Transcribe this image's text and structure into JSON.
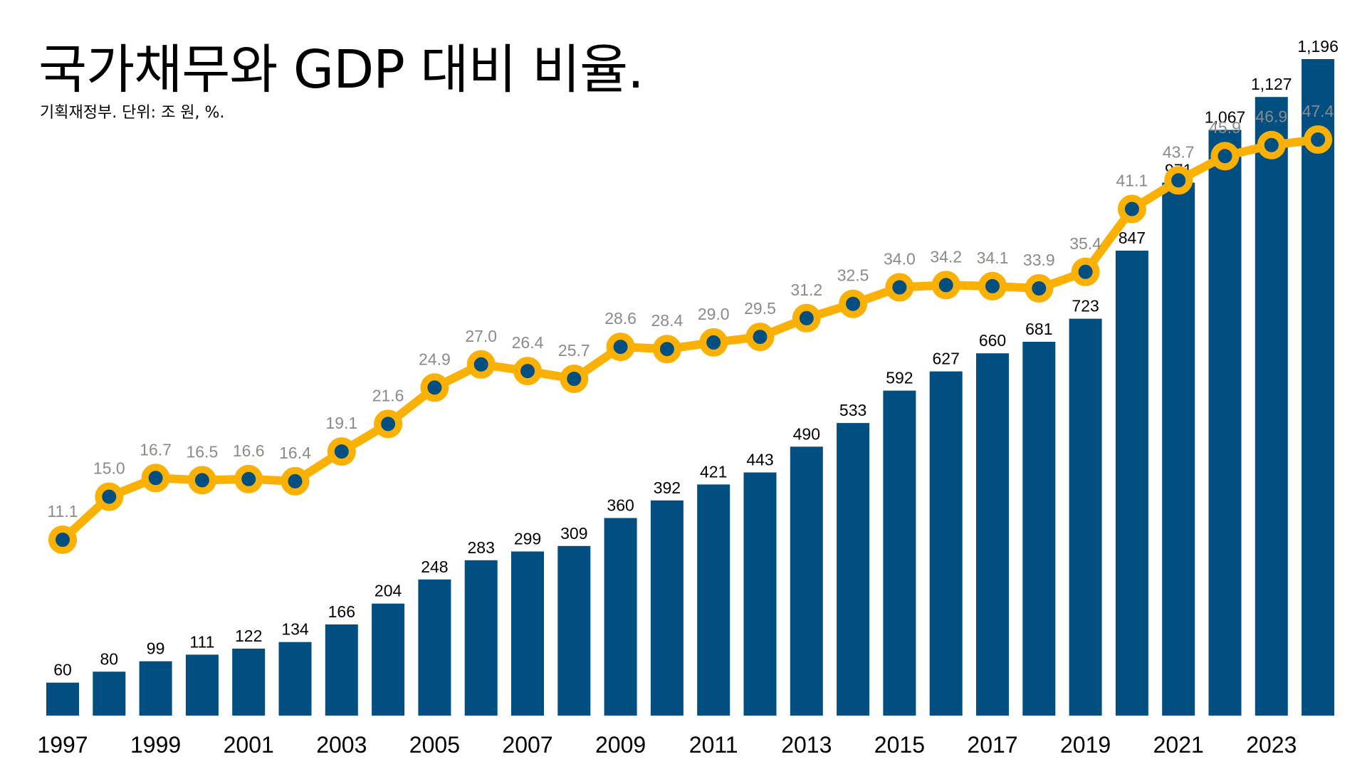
{
  "title": "국가채무와 GDP 대비 비율.",
  "subtitle": "기획재정부. 단위: 조 원, %.",
  "colors": {
    "bar": "#004f80",
    "line": "#fbb103",
    "marker_fill": "#004f80",
    "bar_label": "#000000",
    "ratio_label": "#8a8a8a",
    "background": "#ffffff"
  },
  "chart_data": {
    "type": "bar",
    "categories": [
      "1997",
      "1998",
      "1999",
      "2000",
      "2001",
      "2002",
      "2003",
      "2004",
      "2005",
      "2006",
      "2007",
      "2008",
      "2009",
      "2010",
      "2011",
      "2012",
      "2013",
      "2014",
      "2015",
      "2016",
      "2017",
      "2018",
      "2019",
      "2020",
      "2021",
      "2022",
      "2023",
      "2024"
    ],
    "x_tick_labels": [
      "1997",
      "",
      "1999",
      "",
      "2001",
      "",
      "2003",
      "",
      "2005",
      "",
      "2007",
      "",
      "2009",
      "",
      "2011",
      "",
      "2013",
      "",
      "2015",
      "",
      "2017",
      "",
      "2019",
      "",
      "2021",
      "",
      "2023",
      ""
    ],
    "series": [
      {
        "type": "bar",
        "axis": "left",
        "values": [
          60,
          80,
          99,
          111,
          122,
          134,
          166,
          204,
          248,
          283,
          299,
          309,
          360,
          392,
          421,
          443,
          490,
          533,
          592,
          627,
          660,
          681,
          723,
          847,
          971,
          1067,
          1127,
          1196
        ],
        "labels": [
          "60",
          "80",
          "99",
          "111",
          "122",
          "134",
          "166",
          "204",
          "248",
          "283",
          "299",
          "309",
          "360",
          "392",
          "421",
          "443",
          "490",
          "533",
          "592",
          "627",
          "660",
          "681",
          "723",
          "847",
          "971",
          "1,067",
          "1,127",
          "1,196"
        ]
      },
      {
        "type": "line",
        "axis": "right",
        "values": [
          11.1,
          15.0,
          16.7,
          16.5,
          16.6,
          16.4,
          19.1,
          21.6,
          24.9,
          27.0,
          26.4,
          25.7,
          28.6,
          28.4,
          29.0,
          29.5,
          31.2,
          32.5,
          34.0,
          34.2,
          34.1,
          33.9,
          35.4,
          41.1,
          43.7,
          45.9,
          46.9,
          47.4
        ],
        "labels": [
          "11.1",
          "15.0",
          "16.7",
          "16.5",
          "16.6",
          "16.4",
          "19.1",
          "21.6",
          "24.9",
          "27.0",
          "26.4",
          "25.7",
          "28.6",
          "28.4",
          "29.0",
          "29.5",
          "31.2",
          "32.5",
          "34.0",
          "34.2",
          "34.1",
          "33.9",
          "35.4",
          "41.1",
          "43.7",
          "45.9",
          "46.9",
          "47.4"
        ]
      }
    ],
    "ylim_left": [
      0,
      1200
    ],
    "ylim_right": [
      0,
      50
    ],
    "grid": false,
    "legend": "none",
    "xlabel": "",
    "ylabel": ""
  }
}
